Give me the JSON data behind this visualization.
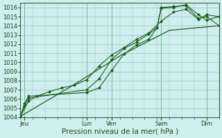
{
  "title": "",
  "xlabel": "Pression niveau de la mer( hPa )",
  "ylim": [
    1004,
    1016.5
  ],
  "xlim": [
    0,
    96
  ],
  "yticks": [
    1004,
    1005,
    1006,
    1007,
    1008,
    1009,
    1010,
    1011,
    1012,
    1013,
    1014,
    1015,
    1016
  ],
  "xtick_positions": [
    2,
    32,
    44,
    68,
    90
  ],
  "xtick_labels": [
    "Jeu",
    "Lun",
    "Ven",
    "Sam",
    "Dim"
  ],
  "background_color": "#d0eeee",
  "grid_color": "#88ccbb",
  "line_color": "#1a5c1a",
  "series": [
    {
      "x": [
        0,
        2,
        4,
        32,
        38,
        44,
        50,
        56,
        62,
        66,
        68,
        74,
        80,
        86,
        90,
        96
      ],
      "y": [
        1004.1,
        1005.3,
        1006.1,
        1007.0,
        1008.2,
        1010.3,
        1011.5,
        1012.2,
        1013.1,
        1013.8,
        1016.0,
        1016.1,
        1016.2,
        1014.8,
        1015.0,
        1014.0
      ]
    },
    {
      "x": [
        0,
        2,
        4,
        32,
        38,
        44,
        50,
        56,
        62,
        66,
        68,
        74,
        80,
        86,
        90,
        96
      ],
      "y": [
        1004.1,
        1005.5,
        1006.3,
        1006.7,
        1007.2,
        1009.1,
        1010.9,
        1011.9,
        1012.5,
        1013.8,
        1015.9,
        1016.0,
        1016.3,
        1015.2,
        1014.6,
        1015.0
      ]
    },
    {
      "x": [
        0,
        4,
        8,
        14,
        20,
        26,
        32,
        38,
        44,
        50,
        56,
        62,
        68,
        74,
        80,
        86,
        90,
        96
      ],
      "y": [
        1004.1,
        1005.8,
        1006.3,
        1006.8,
        1007.2,
        1007.5,
        1008.1,
        1009.6,
        1010.8,
        1011.6,
        1012.5,
        1013.2,
        1014.5,
        1015.5,
        1015.8,
        1014.7,
        1015.2,
        1015.0
      ]
    },
    {
      "x": [
        0,
        24,
        48,
        72,
        96
      ],
      "y": [
        1004.1,
        1007.3,
        1010.7,
        1013.5,
        1014.0
      ],
      "no_marker": true
    }
  ]
}
